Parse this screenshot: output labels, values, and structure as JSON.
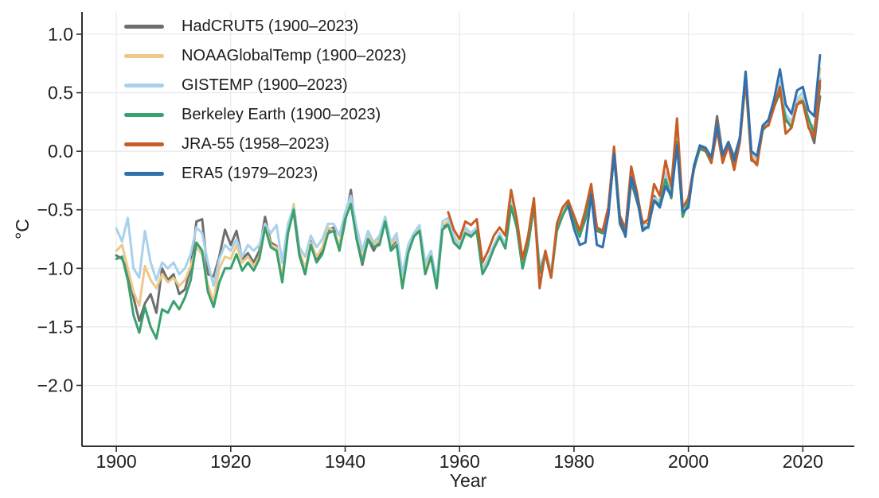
{
  "chart_data": {
    "type": "line",
    "title": "",
    "xlabel": "Year",
    "ylabel": "°C",
    "grid": true,
    "legend_position": "upper-left",
    "background_color": "#ffffff",
    "grid_color": "#e9e9e9",
    "axis_color": "#303030",
    "text_color": "#1f1f1f",
    "xlim": [
      1894,
      2029
    ],
    "ylim": [
      -2.52,
      1.19
    ],
    "x_ticks": [
      1900,
      1920,
      1940,
      1960,
      1980,
      2000,
      2020
    ],
    "x_tick_labels": [
      "1900",
      "1920",
      "1940",
      "1960",
      "1980",
      "2000",
      "2020"
    ],
    "y_ticks": [
      1.0,
      0.5,
      0.0,
      -0.5,
      -1.0,
      -1.5,
      -2.0
    ],
    "y_tick_labels": [
      "1.0",
      "0.5",
      "0.0",
      "−0.5",
      "−1.0",
      "−1.5",
      "−2.0"
    ],
    "series": [
      {
        "name": "hadcrut5",
        "label": "HadCRUT5 (1900–2023)",
        "color": "#6e6e6e",
        "start_year": 1900,
        "end_year": 2023,
        "values": [
          -0.89,
          -0.92,
          -1.02,
          -1.25,
          -1.45,
          -1.3,
          -1.22,
          -1.38,
          -1.0,
          -1.1,
          -1.05,
          -1.22,
          -1.18,
          -1.0,
          -0.6,
          -0.58,
          -1.05,
          -1.07,
          -0.9,
          -0.67,
          -0.8,
          -0.68,
          -0.92,
          -0.87,
          -0.95,
          -0.85,
          -0.56,
          -0.78,
          -0.81,
          -1.1,
          -0.65,
          -0.52,
          -0.89,
          -1.05,
          -0.77,
          -0.92,
          -0.85,
          -0.68,
          -0.65,
          -0.84,
          -0.6,
          -0.33,
          -0.75,
          -0.97,
          -0.75,
          -0.85,
          -0.75,
          -0.56,
          -0.82,
          -0.76,
          -1.13,
          -0.85,
          -0.72,
          -0.68,
          -1.02,
          -0.88,
          -1.14,
          -0.65,
          -0.62,
          -0.78,
          -0.83,
          -0.7,
          -0.72,
          -0.68,
          -1.04,
          -0.95,
          -0.82,
          -0.73,
          -0.82,
          -0.47,
          -0.65,
          -1.0,
          -0.8,
          -0.47,
          -1.03,
          -0.88,
          -1.06,
          -0.68,
          -0.55,
          -0.46,
          -0.58,
          -0.72,
          -0.58,
          -0.35,
          -0.68,
          -0.7,
          -0.55,
          -0.03,
          -0.62,
          -0.72,
          -0.26,
          -0.43,
          -0.6,
          -0.62,
          -0.38,
          -0.45,
          -0.22,
          -0.4,
          0.1,
          -0.55,
          -0.4,
          -0.15,
          0.04,
          0.0,
          -0.08,
          0.3,
          -0.03,
          0.08,
          -0.05,
          0.12,
          0.68,
          -0.03,
          -0.06,
          0.22,
          0.26,
          0.4,
          0.53,
          0.26,
          0.22,
          0.42,
          0.46,
          0.22,
          0.07,
          0.47
        ]
      },
      {
        "name": "noaaglobaltemp",
        "label": "NOAAGlobalTemp (1900–2023)",
        "color": "#ecc98a",
        "start_year": 1900,
        "end_year": 2023,
        "values": [
          -0.85,
          -0.8,
          -1.0,
          -1.2,
          -1.32,
          -0.98,
          -1.1,
          -1.17,
          -1.05,
          -1.12,
          -1.08,
          -1.15,
          -1.1,
          -0.98,
          -0.82,
          -0.88,
          -1.14,
          -1.28,
          -1.0,
          -0.9,
          -0.92,
          -0.8,
          -0.95,
          -0.9,
          -0.98,
          -0.9,
          -0.62,
          -0.8,
          -0.82,
          -1.08,
          -0.68,
          -0.45,
          -0.85,
          -1.0,
          -0.78,
          -0.9,
          -0.82,
          -0.65,
          -0.68,
          -0.8,
          -0.55,
          -0.4,
          -0.72,
          -0.92,
          -0.72,
          -0.8,
          -0.76,
          -0.58,
          -0.8,
          -0.74,
          -1.1,
          -0.82,
          -0.7,
          -0.65,
          -1.0,
          -0.86,
          -1.12,
          -0.63,
          -0.6,
          -0.75,
          -0.8,
          -0.68,
          -0.7,
          -0.66,
          -1.02,
          -0.93,
          -0.8,
          -0.71,
          -0.8,
          -0.44,
          -0.63,
          -0.97,
          -0.78,
          -0.43,
          -1.0,
          -0.86,
          -1.04,
          -0.66,
          -0.53,
          -0.43,
          -0.57,
          -0.7,
          -0.55,
          -0.33,
          -0.66,
          -0.69,
          -0.51,
          -0.05,
          -0.58,
          -0.69,
          -0.22,
          -0.4,
          -0.62,
          -0.6,
          -0.4,
          -0.42,
          -0.18,
          -0.36,
          0.12,
          -0.52,
          -0.41,
          -0.13,
          0.03,
          0.01,
          -0.08,
          0.2,
          -0.05,
          0.06,
          -0.1,
          0.1,
          0.6,
          -0.04,
          -0.08,
          0.2,
          0.24,
          0.4,
          0.57,
          0.28,
          0.22,
          0.43,
          0.46,
          0.23,
          0.18,
          0.71
        ]
      },
      {
        "name": "gistemp",
        "label": "GISTEMP (1900–2023)",
        "color": "#a9d1ec",
        "start_year": 1900,
        "end_year": 2023,
        "values": [
          -0.66,
          -0.77,
          -0.57,
          -1.0,
          -1.08,
          -0.68,
          -0.95,
          -1.1,
          -0.95,
          -1.0,
          -0.95,
          -1.05,
          -1.0,
          -0.88,
          -0.65,
          -0.7,
          -0.95,
          -1.15,
          -0.92,
          -0.8,
          -0.85,
          -0.75,
          -0.9,
          -0.8,
          -0.85,
          -0.8,
          -0.62,
          -0.7,
          -0.63,
          -0.95,
          -0.62,
          -0.48,
          -0.82,
          -0.9,
          -0.72,
          -0.82,
          -0.75,
          -0.62,
          -0.62,
          -0.72,
          -0.52,
          -0.38,
          -0.65,
          -0.85,
          -0.68,
          -0.78,
          -0.72,
          -0.56,
          -0.78,
          -0.7,
          -1.05,
          -0.8,
          -0.7,
          -0.63,
          -0.95,
          -0.85,
          -1.1,
          -0.6,
          -0.57,
          -0.72,
          -0.8,
          -0.65,
          -0.7,
          -0.65,
          -1.0,
          -0.92,
          -0.8,
          -0.7,
          -0.8,
          -0.42,
          -0.62,
          -0.95,
          -0.75,
          -0.42,
          -1.0,
          -0.85,
          -1.03,
          -0.65,
          -0.55,
          -0.44,
          -0.55,
          -0.7,
          -0.52,
          -0.32,
          -0.65,
          -0.68,
          -0.5,
          -0.05,
          -0.55,
          -0.68,
          -0.2,
          -0.38,
          -0.63,
          -0.66,
          -0.4,
          -0.44,
          -0.2,
          -0.38,
          0.1,
          -0.5,
          -0.42,
          -0.12,
          0.05,
          0.02,
          -0.06,
          0.22,
          -0.02,
          0.08,
          -0.08,
          0.12,
          0.62,
          -0.02,
          -0.05,
          0.2,
          0.25,
          0.42,
          0.6,
          0.32,
          0.25,
          0.45,
          0.5,
          0.25,
          0.2,
          0.62
        ]
      },
      {
        "name": "berkeley-earth",
        "label": "Berkeley Earth (1900–2023)",
        "color": "#3aa06e",
        "start_year": 1900,
        "end_year": 2023,
        "values": [
          -0.92,
          -0.9,
          -1.1,
          -1.4,
          -1.55,
          -1.33,
          -1.5,
          -1.6,
          -1.35,
          -1.38,
          -1.28,
          -1.35,
          -1.25,
          -1.1,
          -0.78,
          -0.85,
          -1.2,
          -1.33,
          -1.12,
          -1.0,
          -1.0,
          -0.88,
          -1.02,
          -0.95,
          -1.02,
          -0.92,
          -0.65,
          -0.82,
          -0.85,
          -1.12,
          -0.7,
          -0.5,
          -0.88,
          -1.05,
          -0.8,
          -0.95,
          -0.88,
          -0.7,
          -0.68,
          -0.85,
          -0.58,
          -0.45,
          -0.75,
          -0.95,
          -0.75,
          -0.82,
          -0.8,
          -0.6,
          -0.85,
          -0.8,
          -1.17,
          -0.87,
          -0.73,
          -0.68,
          -1.05,
          -0.9,
          -1.17,
          -0.67,
          -0.63,
          -0.78,
          -0.83,
          -0.7,
          -0.73,
          -0.68,
          -1.05,
          -0.96,
          -0.83,
          -0.73,
          -0.83,
          -0.47,
          -0.65,
          -1.0,
          -0.8,
          -0.46,
          -1.04,
          -0.88,
          -1.08,
          -0.68,
          -0.55,
          -0.45,
          -0.6,
          -0.73,
          -0.56,
          -0.34,
          -0.67,
          -0.7,
          -0.52,
          -0.04,
          -0.6,
          -0.7,
          -0.24,
          -0.4,
          -0.66,
          -0.65,
          -0.42,
          -0.46,
          -0.24,
          -0.4,
          0.08,
          -0.56,
          -0.43,
          -0.14,
          0.02,
          0.0,
          -0.1,
          0.2,
          -0.05,
          0.05,
          -0.1,
          0.1,
          0.6,
          -0.08,
          -0.1,
          0.18,
          0.23,
          0.38,
          0.5,
          0.28,
          0.2,
          0.4,
          0.43,
          0.28,
          0.15,
          0.56
        ]
      },
      {
        "name": "jra-55",
        "label": "JRA-55 (1958–2023)",
        "color": "#c85d26",
        "start_year": 1958,
        "end_year": 2023,
        "values": [
          -0.52,
          -0.67,
          -0.75,
          -0.6,
          -0.63,
          -0.58,
          -0.95,
          -0.85,
          -0.72,
          -0.65,
          -0.72,
          -0.33,
          -0.58,
          -0.92,
          -0.72,
          -0.4,
          -1.17,
          -0.85,
          -1.08,
          -0.62,
          -0.48,
          -0.42,
          -0.55,
          -0.68,
          -0.5,
          -0.28,
          -0.65,
          -0.68,
          -0.48,
          0.04,
          -0.55,
          -0.66,
          -0.13,
          -0.35,
          -0.62,
          -0.58,
          -0.28,
          -0.38,
          -0.08,
          -0.3,
          0.28,
          -0.48,
          -0.4,
          -0.12,
          0.04,
          0.02,
          -0.1,
          0.18,
          -0.1,
          0.05,
          -0.16,
          0.08,
          0.62,
          -0.06,
          -0.12,
          0.2,
          0.22,
          0.38,
          0.55,
          0.15,
          0.2,
          0.4,
          0.42,
          0.2,
          0.12,
          0.6
        ]
      },
      {
        "name": "era5",
        "label": "ERA5 (1979–2023)",
        "color": "#3270ad",
        "start_year": 1979,
        "end_year": 2023,
        "values": [
          -0.47,
          -0.66,
          -0.8,
          -0.78,
          -0.37,
          -0.8,
          -0.82,
          -0.55,
          -0.02,
          -0.58,
          -0.73,
          -0.22,
          -0.38,
          -0.68,
          -0.64,
          -0.42,
          -0.48,
          -0.3,
          -0.38,
          0.05,
          -0.52,
          -0.48,
          -0.12,
          0.05,
          0.03,
          -0.05,
          0.22,
          -0.03,
          0.08,
          -0.08,
          0.12,
          0.68,
          0.0,
          -0.04,
          0.22,
          0.27,
          0.45,
          0.7,
          0.4,
          0.32,
          0.52,
          0.55,
          0.35,
          0.3,
          0.82
        ]
      }
    ]
  }
}
